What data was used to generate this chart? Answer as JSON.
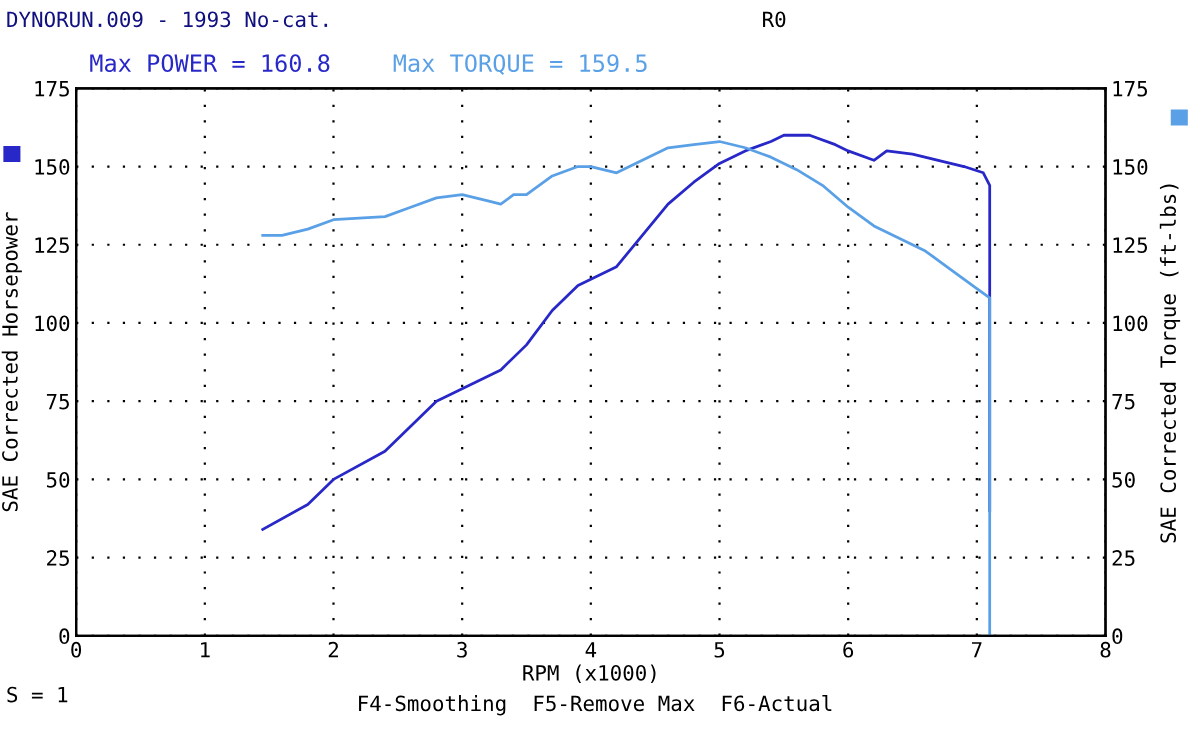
{
  "chart_data": {
    "type": "line",
    "title": "DYNORUN.009 - 1993 No-cat.",
    "xlabel": "RPM (x1000)",
    "ylabel": "SAE Corrected Horsepower",
    "y2label": "SAE Corrected Torque (ft-lbs)",
    "annotations": [
      "Max POWER = 160.8",
      "Max TORQUE = 159.5",
      "R0",
      "S = 1",
      "F4-Smoothing  F5-Remove Max  F6-Actual"
    ],
    "xlim": [
      0,
      8
    ],
    "xticks": [
      0,
      1,
      2,
      3,
      4,
      5,
      6,
      7,
      8
    ],
    "ylim": [
      0,
      175
    ],
    "yticks": [
      0,
      25,
      50,
      75,
      100,
      125,
      150,
      175
    ],
    "y2lim": [
      0,
      175
    ],
    "y2ticks": [
      0,
      25,
      50,
      75,
      100,
      125,
      150,
      175
    ],
    "grid": true,
    "series": [
      {
        "color": "#2828c8",
        "x": [
          1.45,
          1.8,
          2.0,
          2.4,
          2.8,
          3.0,
          3.2,
          3.3,
          3.5,
          3.7,
          3.9,
          4.0,
          4.2,
          4.4,
          4.6,
          4.8,
          5.0,
          5.2,
          5.4,
          5.5,
          5.7,
          5.9,
          6.0,
          6.2,
          6.3,
          6.5,
          6.7,
          6.9,
          7.05,
          7.1,
          7.1
        ],
        "values": [
          34,
          42,
          50,
          59,
          75,
          79,
          83,
          85,
          93,
          104,
          112,
          114,
          118,
          128,
          138,
          145,
          151,
          155,
          158,
          160,
          160,
          157,
          155,
          152,
          155,
          154,
          152,
          150,
          148,
          144,
          40
        ]
      },
      {
        "color": "#5aa0e6",
        "axis": "y2",
        "x": [
          1.45,
          1.6,
          1.8,
          2.0,
          2.4,
          2.6,
          2.8,
          3.0,
          3.2,
          3.3,
          3.4,
          3.5,
          3.7,
          3.9,
          4.0,
          4.2,
          4.4,
          4.6,
          4.8,
          5.0,
          5.2,
          5.4,
          5.6,
          5.8,
          6.0,
          6.2,
          6.4,
          6.6,
          6.8,
          7.0,
          7.1,
          7.1
        ],
        "values": [
          128,
          128,
          130,
          133,
          134,
          137,
          140,
          141,
          139,
          138,
          141,
          141,
          147,
          150,
          150,
          148,
          152,
          156,
          157,
          158,
          156,
          153,
          149,
          144,
          137,
          131,
          127,
          123,
          117,
          111,
          108,
          0
        ]
      }
    ]
  }
}
